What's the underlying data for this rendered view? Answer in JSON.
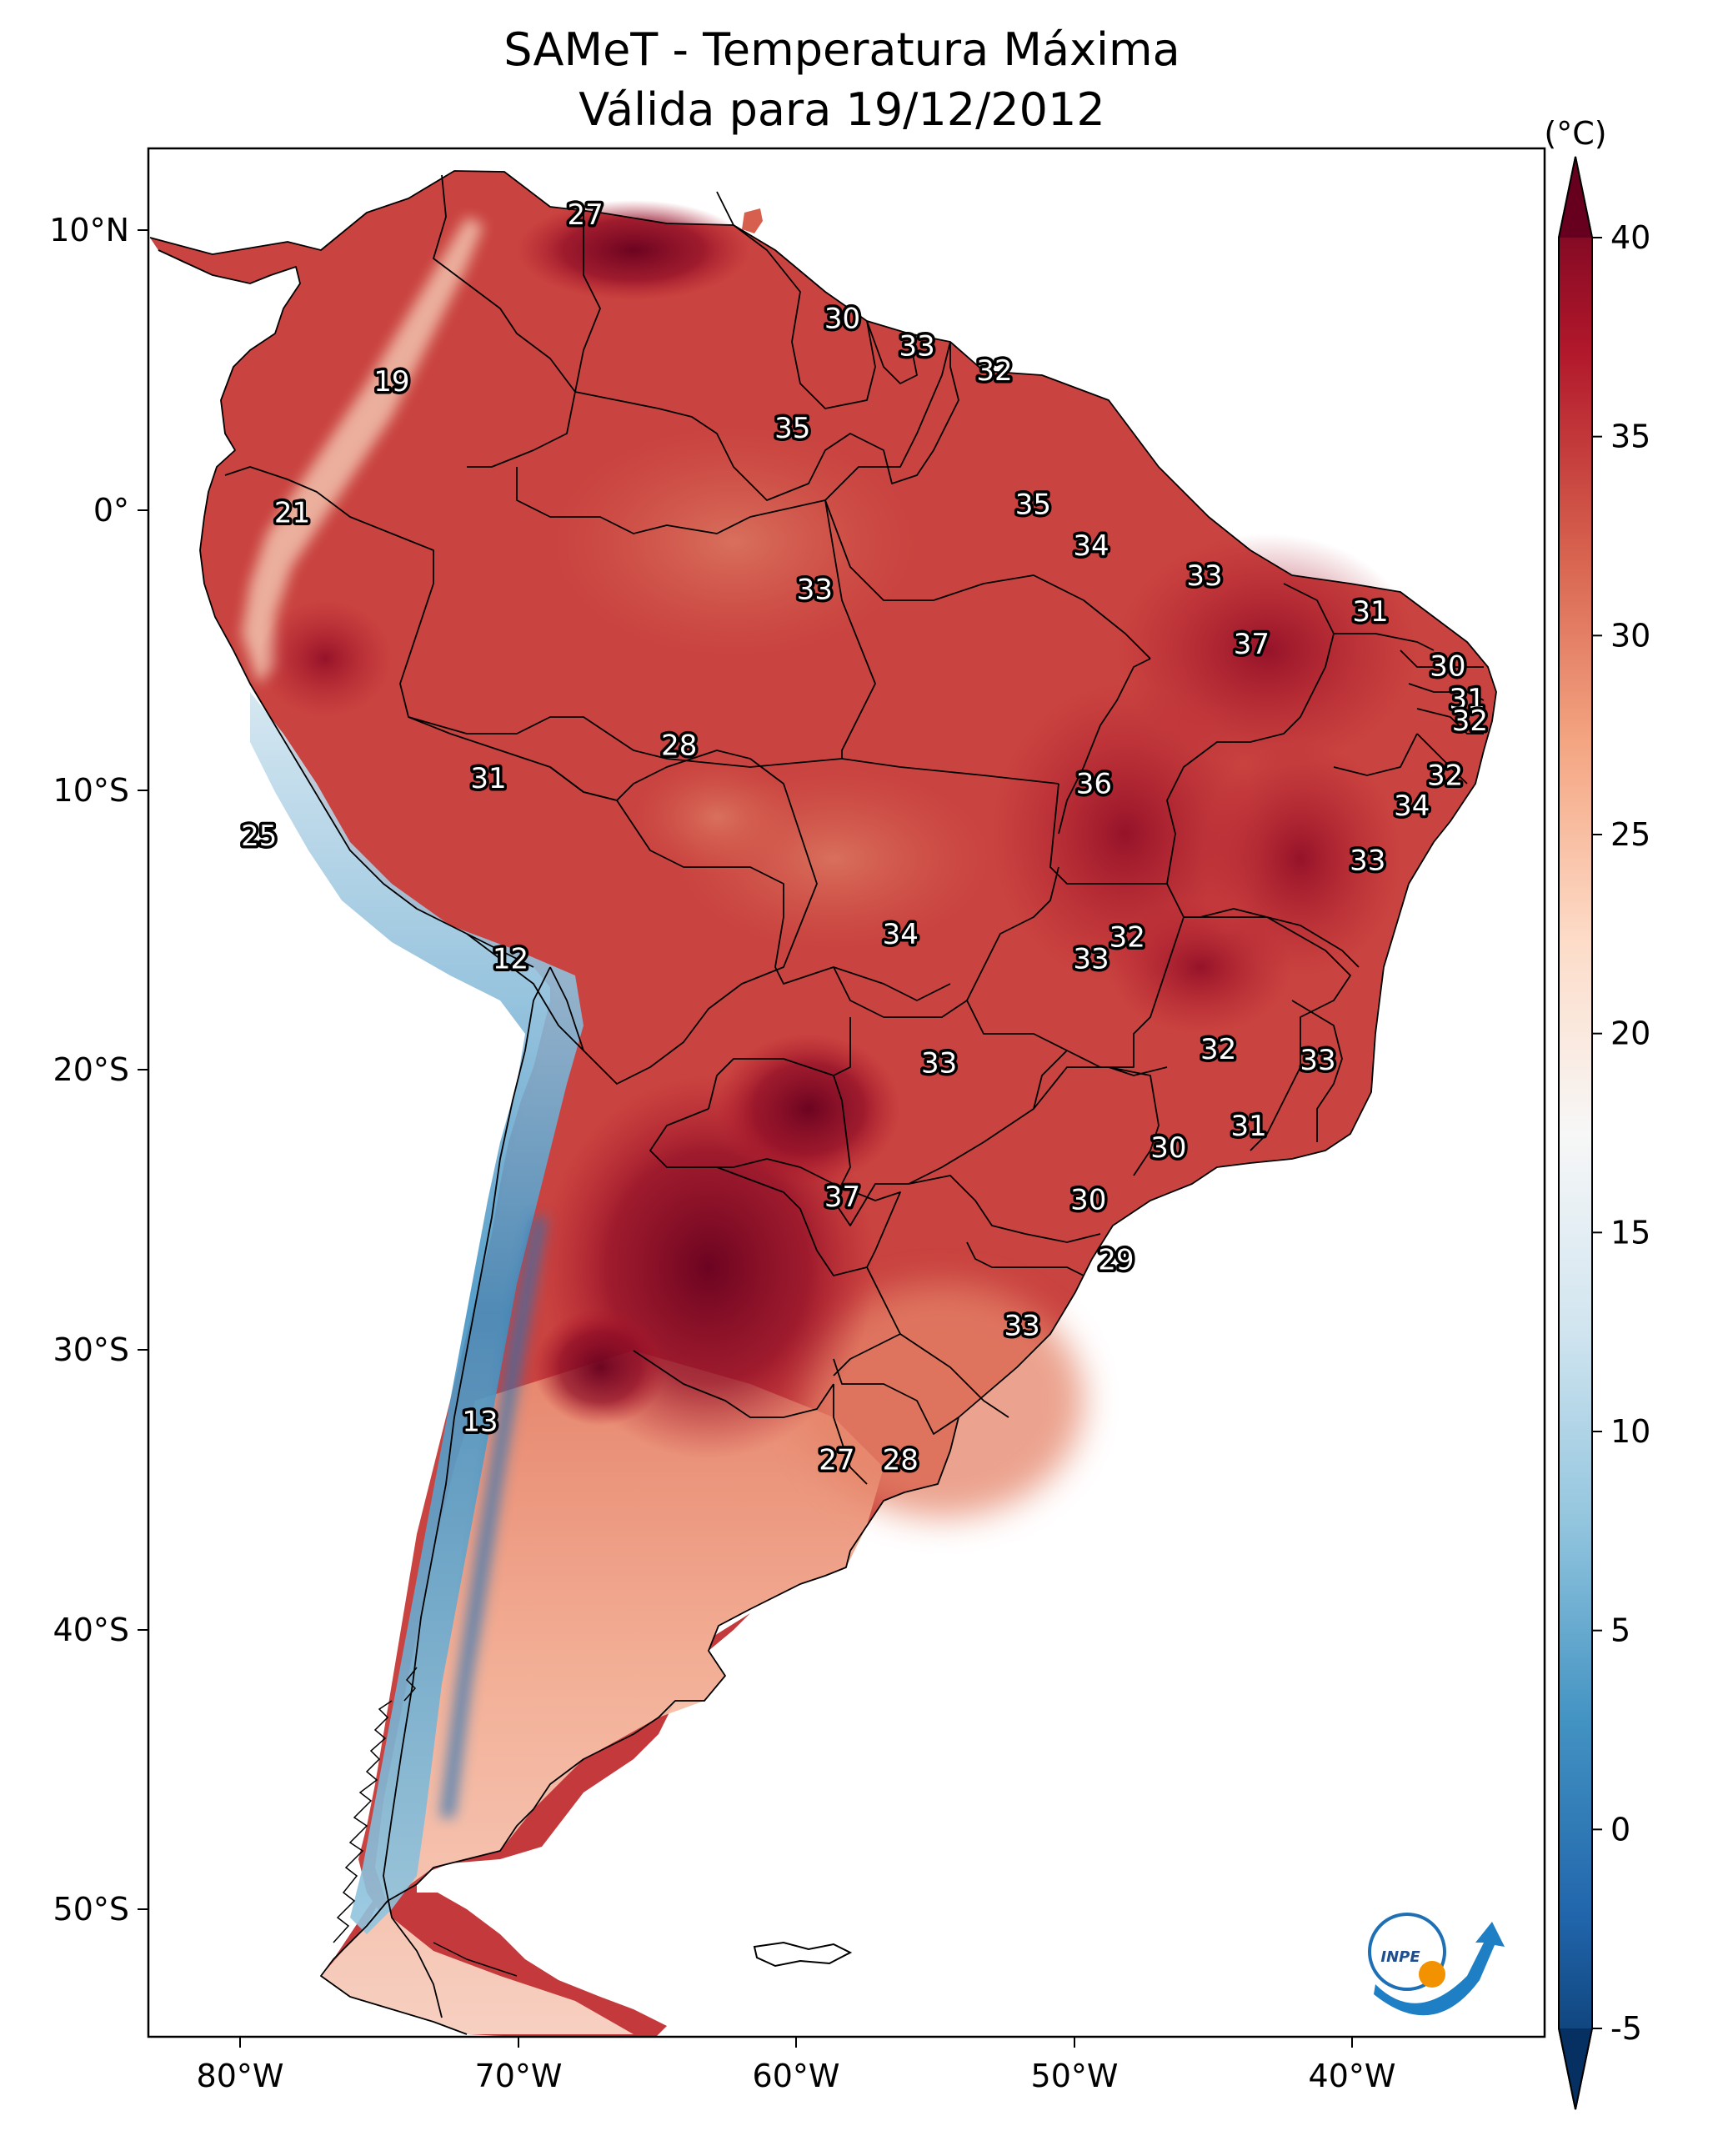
{
  "title_line1": "SAMeT - Temperatura Máxima",
  "title_line2": "Válida para 19/12/2012",
  "colorbar": {
    "unit": "(°C)",
    "ticks": [
      "40",
      "35",
      "30",
      "25",
      "20",
      "15",
      "10",
      "5",
      "0",
      "-5"
    ],
    "min": -5,
    "max": 40,
    "colors": [
      "#053061",
      "#2166ac",
      "#4393c3",
      "#92c5de",
      "#d1e5f0",
      "#f7f7f7",
      "#fddbc7",
      "#f4a582",
      "#d6604d",
      "#b2182b",
      "#67001f"
    ]
  },
  "axes": {
    "lon_labels": [
      "80°W",
      "70°W",
      "60°W",
      "50°W",
      "40°W"
    ],
    "lat_labels": [
      "10°N",
      "0°",
      "10°S",
      "20°S",
      "30°S",
      "40°S",
      "50°S"
    ]
  },
  "logo_text": "INPE",
  "chart_data": {
    "type": "heatmap",
    "title": "SAMeT - Temperatura Máxima Válida para 19/12/2012",
    "units": "°C",
    "lon_range": [
      -83,
      -32.5
    ],
    "lat_range": [
      -56,
      13
    ],
    "value_range": [
      -5,
      40
    ],
    "station_values": [
      {
        "value": "27",
        "lon": -67.2,
        "lat": 10.6
      },
      {
        "value": "19",
        "lon": -74.2,
        "lat": 4.5
      },
      {
        "value": "30",
        "lon": -57.9,
        "lat": 6.8
      },
      {
        "value": "33",
        "lon": -55.2,
        "lat": 5.8
      },
      {
        "value": "32",
        "lon": -52.4,
        "lat": 4.9
      },
      {
        "value": "35",
        "lon": -59.7,
        "lat": 2.8
      },
      {
        "value": "21",
        "lon": -77.8,
        "lat": -0.3
      },
      {
        "value": "35",
        "lon": -51.0,
        "lat": 0.0
      },
      {
        "value": "34",
        "lon": -48.9,
        "lat": -1.5
      },
      {
        "value": "33",
        "lon": -44.8,
        "lat": -2.6
      },
      {
        "value": "33",
        "lon": -58.9,
        "lat": -3.1
      },
      {
        "value": "31",
        "lon": -38.8,
        "lat": -3.9
      },
      {
        "value": "37",
        "lon": -43.1,
        "lat": -5.1
      },
      {
        "value": "30",
        "lon": -36.0,
        "lat": -5.9
      },
      {
        "value": "31",
        "lon": -35.3,
        "lat": -7.1
      },
      {
        "value": "32",
        "lon": -35.2,
        "lat": -7.9
      },
      {
        "value": "28",
        "lon": -63.8,
        "lat": -8.8
      },
      {
        "value": "32",
        "lon": -36.1,
        "lat": -9.9
      },
      {
        "value": "31",
        "lon": -70.7,
        "lat": -10.0
      },
      {
        "value": "36",
        "lon": -48.8,
        "lat": -10.2
      },
      {
        "value": "34",
        "lon": -37.3,
        "lat": -11.0
      },
      {
        "value": "25",
        "lon": -79.0,
        "lat": -12.1
      },
      {
        "value": "33",
        "lon": -38.9,
        "lat": -13.0
      },
      {
        "value": "34",
        "lon": -55.8,
        "lat": -15.7
      },
      {
        "value": "32",
        "lon": -47.6,
        "lat": -15.8
      },
      {
        "value": "12",
        "lon": -69.9,
        "lat": -16.6
      },
      {
        "value": "33",
        "lon": -48.9,
        "lat": -16.6
      },
      {
        "value": "32",
        "lon": -44.3,
        "lat": -19.9
      },
      {
        "value": "33",
        "lon": -54.4,
        "lat": -20.4
      },
      {
        "value": "33",
        "lon": -40.7,
        "lat": -20.3
      },
      {
        "value": "31",
        "lon": -43.2,
        "lat": -22.7
      },
      {
        "value": "30",
        "lon": -46.1,
        "lat": -23.5
      },
      {
        "value": "37",
        "lon": -57.9,
        "lat": -25.3
      },
      {
        "value": "30",
        "lon": -49.0,
        "lat": -25.4
      },
      {
        "value": "29",
        "lon": -48.0,
        "lat": -27.6
      },
      {
        "value": "33",
        "lon": -51.4,
        "lat": -30.0
      },
      {
        "value": "13",
        "lon": -71.0,
        "lat": -33.5
      },
      {
        "value": "27",
        "lon": -58.1,
        "lat": -34.9
      },
      {
        "value": "28",
        "lon": -55.8,
        "lat": -34.9
      }
    ]
  }
}
